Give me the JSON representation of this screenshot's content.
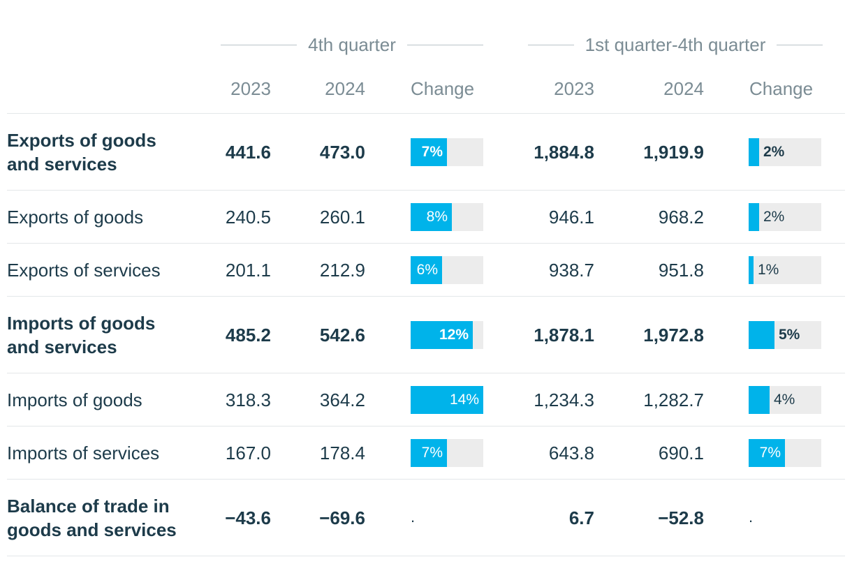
{
  "header": {
    "group_q4": "4th quarter",
    "group_year": "1st quarter-4th quarter",
    "columns": [
      "2023",
      "2024",
      "Change",
      "2023",
      "2024",
      "Change"
    ]
  },
  "colors": {
    "bar_fill": "#00b3ea",
    "bar_track": "#ececec",
    "text": "#1d3b4a",
    "muted": "#7b8c94"
  },
  "rows": [
    {
      "label": "Exports of goods and services",
      "bold": true,
      "q4_2023": "441.6",
      "q4_2024": "473.0",
      "q4_change": "7%",
      "q4_change_value": 7,
      "yr_2023": "1,884.8",
      "yr_2024": "1,919.9",
      "yr_change": "2%",
      "yr_change_value": 2
    },
    {
      "label": "Exports of goods",
      "bold": false,
      "q4_2023": "240.5",
      "q4_2024": "260.1",
      "q4_change": "8%",
      "q4_change_value": 8,
      "yr_2023": "946.1",
      "yr_2024": "968.2",
      "yr_change": "2%",
      "yr_change_value": 2
    },
    {
      "label": "Exports of services",
      "bold": false,
      "q4_2023": "201.1",
      "q4_2024": "212.9",
      "q4_change": "6%",
      "q4_change_value": 6,
      "yr_2023": "938.7",
      "yr_2024": "951.8",
      "yr_change": "1%",
      "yr_change_value": 1
    },
    {
      "label": "Imports of goods and services",
      "bold": true,
      "q4_2023": "485.2",
      "q4_2024": "542.6",
      "q4_change": "12%",
      "q4_change_value": 12,
      "yr_2023": "1,878.1",
      "yr_2024": "1,972.8",
      "yr_change": "5%",
      "yr_change_value": 5
    },
    {
      "label": "Imports of goods",
      "bold": false,
      "q4_2023": "318.3",
      "q4_2024": "364.2",
      "q4_change": "14%",
      "q4_change_value": 14,
      "yr_2023": "1,234.3",
      "yr_2024": "1,282.7",
      "yr_change": "4%",
      "yr_change_value": 4
    },
    {
      "label": "Imports of services",
      "bold": false,
      "q4_2023": "167.0",
      "q4_2024": "178.4",
      "q4_change": "7%",
      "q4_change_value": 7,
      "yr_2023": "643.8",
      "yr_2024": "690.1",
      "yr_change": "7%",
      "yr_change_value": 7
    },
    {
      "label": "Balance of trade in goods and services",
      "bold": true,
      "q4_2023": "−43.6",
      "q4_2024": "−69.6",
      "q4_change": ".",
      "q4_change_value": null,
      "yr_2023": "6.7",
      "yr_2024": "−52.8",
      "yr_change": ".",
      "yr_change_value": null
    }
  ]
}
